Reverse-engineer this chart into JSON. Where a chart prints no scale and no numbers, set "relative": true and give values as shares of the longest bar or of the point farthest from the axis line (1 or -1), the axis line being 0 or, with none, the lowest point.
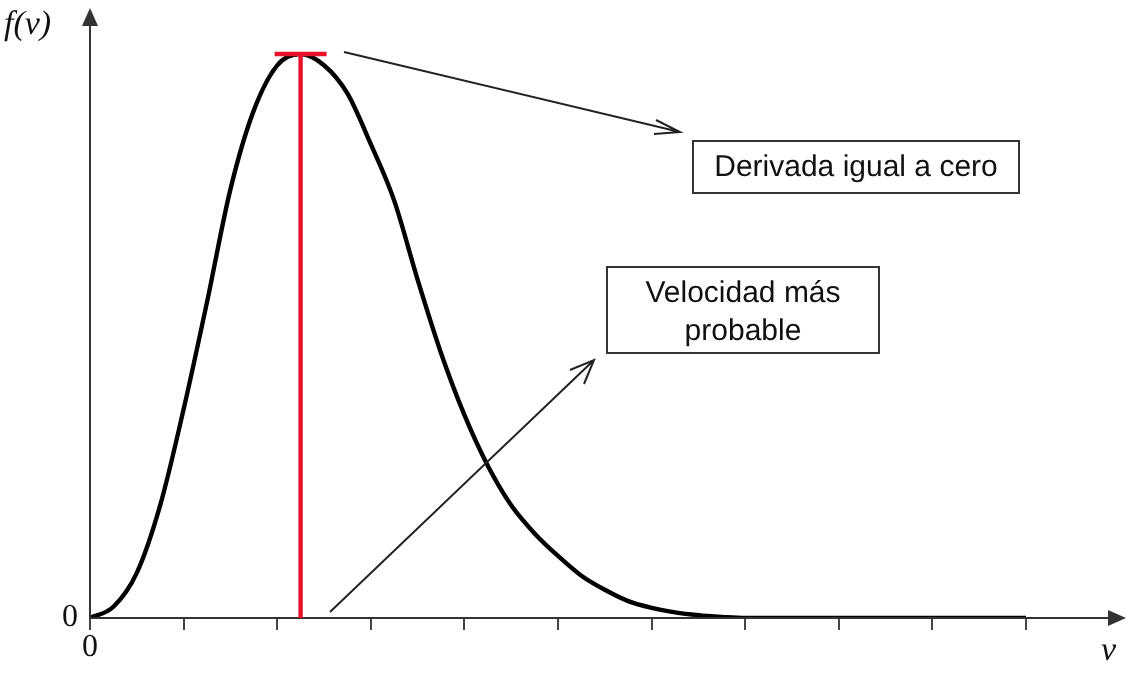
{
  "chart_data": {
    "type": "line",
    "relative": true,
    "xlabel": "v",
    "ylabel": "f(v)",
    "categories": [
      null,
      null,
      null,
      null,
      null,
      null,
      null,
      null,
      null,
      null,
      null,
      null,
      null,
      null,
      null,
      null,
      null,
      null,
      null,
      null,
      null,
      null,
      null,
      null,
      null,
      null,
      null,
      null,
      null,
      null,
      null,
      null,
      null,
      null,
      null,
      null,
      null,
      null,
      null,
      null,
      null
    ],
    "series": [
      {
        "color": "#000000",
        "values": [
          0,
          0.02,
          0.08,
          0.2,
          0.37,
          0.56,
          0.76,
          0.9,
          0.98,
          1,
          0.98,
          0.93,
          0.84,
          0.74,
          0.6,
          0.47,
          0.36,
          0.27,
          0.2,
          0.15,
          0.11,
          0.075,
          0.05,
          0.03,
          0.018,
          0.01,
          0.005,
          0.002,
          0,
          0,
          0,
          0,
          0,
          0,
          0,
          0,
          0,
          0,
          0,
          0,
          0
        ]
      }
    ],
    "annotations": [
      "Derivada igual a cero",
      "Velocidad más probable",
      "0",
      "0"
    ],
    "grid": false,
    "legend": false,
    "marker": "none",
    "line_style": "solid"
  }
}
